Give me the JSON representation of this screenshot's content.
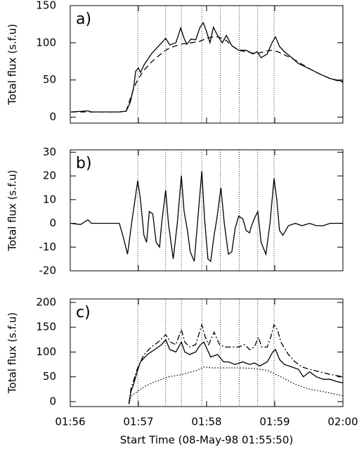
{
  "chart_data": [
    {
      "type": "line",
      "label": "a)",
      "y_label": "Total flux (s.f.u)",
      "xlim": [
        116,
        120
      ],
      "ylim": [
        -8,
        150
      ],
      "yticks": [
        0,
        50,
        100,
        150
      ],
      "vlines": [
        116.99,
        117.4,
        117.63,
        117.93,
        118.2,
        118.48,
        118.75,
        118.99
      ],
      "series": [
        {
          "color": "#000",
          "dash": "solid",
          "x": [
            116.01,
            116.26,
            116.31,
            116.72,
            116.82,
            116.88,
            116.93,
            116.96,
            117.0,
            117.03,
            117.08,
            117.19,
            117.29,
            117.37,
            117.4,
            117.46,
            117.55,
            117.62,
            117.67,
            117.71,
            117.77,
            117.84,
            117.9,
            117.95,
            118.0,
            118.05,
            118.1,
            118.16,
            118.23,
            118.29,
            118.37,
            118.47,
            118.58,
            118.68,
            118.74,
            118.8,
            118.89,
            118.96,
            119.01,
            119.07,
            119.14,
            119.25,
            119.35,
            119.51,
            119.66,
            119.81,
            120.0
          ],
          "values": [
            7,
            8.5,
            7,
            7,
            8,
            20,
            40,
            62,
            66,
            60,
            70,
            85,
            95,
            103,
            106,
            97,
            100,
            120,
            106,
            98,
            105,
            104,
            120,
            127,
            115,
            100,
            121,
            110,
            100,
            110,
            96,
            90,
            90,
            85,
            88,
            80,
            85,
            100,
            108,
            95,
            88,
            80,
            72,
            65,
            58,
            52,
            48
          ]
        },
        {
          "color": "#000",
          "dash": "dashed",
          "x": [
            116.01,
            116.26,
            116.31,
            116.72,
            116.82,
            116.88,
            116.93,
            116.96,
            117.0,
            117.03,
            117.08,
            117.19,
            117.29,
            117.37,
            117.4,
            117.46,
            117.55,
            117.62,
            117.67,
            117.71,
            117.77,
            117.84,
            117.9,
            117.95,
            118.0,
            118.05,
            118.1,
            118.16,
            118.23,
            118.29,
            118.37,
            118.47,
            118.58,
            118.68,
            118.74,
            118.8,
            118.89,
            118.96,
            119.01,
            119.07,
            119.14,
            119.25,
            119.35,
            119.51,
            119.66,
            119.81,
            120.0
          ],
          "values": [
            7,
            7,
            7,
            7,
            8,
            25,
            38,
            45,
            52,
            56,
            63,
            74,
            82,
            88,
            90,
            93,
            96,
            98,
            99,
            99,
            100,
            101,
            102,
            104,
            106,
            107,
            108,
            108,
            106,
            103,
            96,
            90,
            88,
            86,
            86,
            87,
            89,
            90,
            89,
            87,
            84,
            79,
            74,
            65,
            58,
            52,
            47
          ]
        }
      ]
    },
    {
      "type": "line",
      "label": "b)",
      "y_label": "Total flux (s.f.u)",
      "xlim": [
        116,
        120
      ],
      "ylim": [
        -20,
        31
      ],
      "yticks": [
        -20,
        -10,
        0,
        10,
        20,
        30
      ],
      "vlines": [
        116.99,
        117.4,
        117.63,
        117.93,
        118.2,
        118.48,
        118.75,
        118.99
      ],
      "series": [
        {
          "color": "#000",
          "dash": "solid",
          "x": [
            116.01,
            116.15,
            116.26,
            116.31,
            116.72,
            116.77,
            116.84,
            116.9,
            116.99,
            117.03,
            117.08,
            117.12,
            117.16,
            117.21,
            117.26,
            117.31,
            117.34,
            117.4,
            117.44,
            117.51,
            117.57,
            117.63,
            117.67,
            117.72,
            117.76,
            117.82,
            117.88,
            117.93,
            117.97,
            118.02,
            118.06,
            118.11,
            118.15,
            118.21,
            118.26,
            118.32,
            118.37,
            118.42,
            118.47,
            118.53,
            118.58,
            118.63,
            118.66,
            118.7,
            118.75,
            118.8,
            118.87,
            118.93,
            118.99,
            119.03,
            119.07,
            119.12,
            119.2,
            119.3,
            119.4,
            119.51,
            119.61,
            119.71,
            119.81,
            120.0
          ],
          "values": [
            0,
            -0.5,
            1.5,
            0,
            0,
            -5,
            -13,
            0,
            18,
            10,
            -5,
            -8,
            5,
            4,
            -8,
            -10,
            0,
            14,
            0,
            -15,
            0,
            20,
            5,
            -3,
            -12,
            -16,
            5,
            22,
            2,
            -15,
            -16,
            -5,
            2,
            15,
            0,
            -13,
            -12,
            -2,
            3,
            2,
            -3,
            -4,
            -1,
            2,
            5,
            -8,
            -13,
            0,
            19,
            10,
            -3,
            -5,
            -1,
            0,
            -1,
            0,
            -1,
            -1,
            0,
            0
          ]
        }
      ]
    },
    {
      "type": "line",
      "label": "c)",
      "y_label": "Total flux (s.f.u)",
      "x_label": "Start Time (08-May-98 01:55:50)",
      "xlim": [
        116,
        120
      ],
      "ylim": [
        -10,
        207
      ],
      "yticks": [
        0,
        50,
        100,
        150,
        200
      ],
      "xticks": [
        {
          "value": 116,
          "label": "01:56"
        },
        {
          "value": 117,
          "label": "01:57"
        },
        {
          "value": 118,
          "label": "01:58"
        },
        {
          "value": 119,
          "label": "01:59"
        },
        {
          "value": 120,
          "label": "02:00"
        }
      ],
      "vlines": [
        116.99,
        117.4,
        117.63,
        117.93,
        118.2,
        118.48,
        118.75,
        118.99
      ],
      "series": [
        {
          "color": "#000",
          "dash": "solid",
          "x": [
            116.86,
            116.89,
            116.93,
            116.98,
            117.03,
            117.13,
            117.24,
            117.34,
            117.4,
            117.46,
            117.55,
            117.63,
            117.68,
            117.75,
            117.84,
            117.91,
            117.96,
            118.01,
            118.06,
            118.16,
            118.25,
            118.32,
            118.42,
            118.53,
            118.63,
            118.7,
            118.78,
            118.89,
            118.97,
            119.01,
            119.07,
            119.14,
            119.25,
            119.35,
            119.42,
            119.51,
            119.61,
            119.71,
            119.81,
            119.92,
            120.0
          ],
          "values": [
            -5,
            20,
            35,
            60,
            80,
            95,
            105,
            115,
            125,
            105,
            100,
            120,
            100,
            95,
            100,
            115,
            120,
            105,
            90,
            95,
            80,
            80,
            75,
            80,
            75,
            78,
            72,
            80,
            100,
            105,
            85,
            75,
            70,
            65,
            50,
            60,
            50,
            45,
            45,
            40,
            38
          ]
        },
        {
          "color": "#000",
          "dash": "dashdot",
          "x": [
            116.86,
            116.89,
            116.98,
            117.08,
            117.19,
            117.29,
            117.4,
            117.47,
            117.55,
            117.63,
            117.68,
            117.75,
            117.84,
            117.93,
            117.98,
            118.03,
            118.11,
            118.19,
            118.27,
            118.37,
            118.47,
            118.56,
            118.63,
            118.7,
            118.76,
            118.81,
            118.89,
            118.94,
            118.99,
            119.04,
            119.09,
            119.2,
            119.3,
            119.4,
            119.51,
            119.66,
            119.81,
            120.0
          ],
          "values": [
            -5,
            25,
            65,
            95,
            110,
            120,
            135,
            120,
            115,
            145,
            120,
            110,
            115,
            155,
            130,
            115,
            140,
            115,
            110,
            110,
            110,
            115,
            105,
            110,
            130,
            110,
            110,
            130,
            155,
            145,
            120,
            95,
            80,
            70,
            65,
            60,
            55,
            50
          ]
        },
        {
          "color": "#000",
          "dash": "dotted",
          "x": [
            116.86,
            116.89,
            116.98,
            117.08,
            117.24,
            117.44,
            117.65,
            117.86,
            117.96,
            118.06,
            118.27,
            118.47,
            118.68,
            118.89,
            119.09,
            119.3,
            119.51,
            119.71,
            120.0
          ],
          "values": [
            -5,
            10,
            20,
            30,
            40,
            50,
            55,
            63,
            70,
            68,
            68,
            68,
            67,
            63,
            50,
            35,
            25,
            20,
            12
          ]
        }
      ]
    }
  ]
}
